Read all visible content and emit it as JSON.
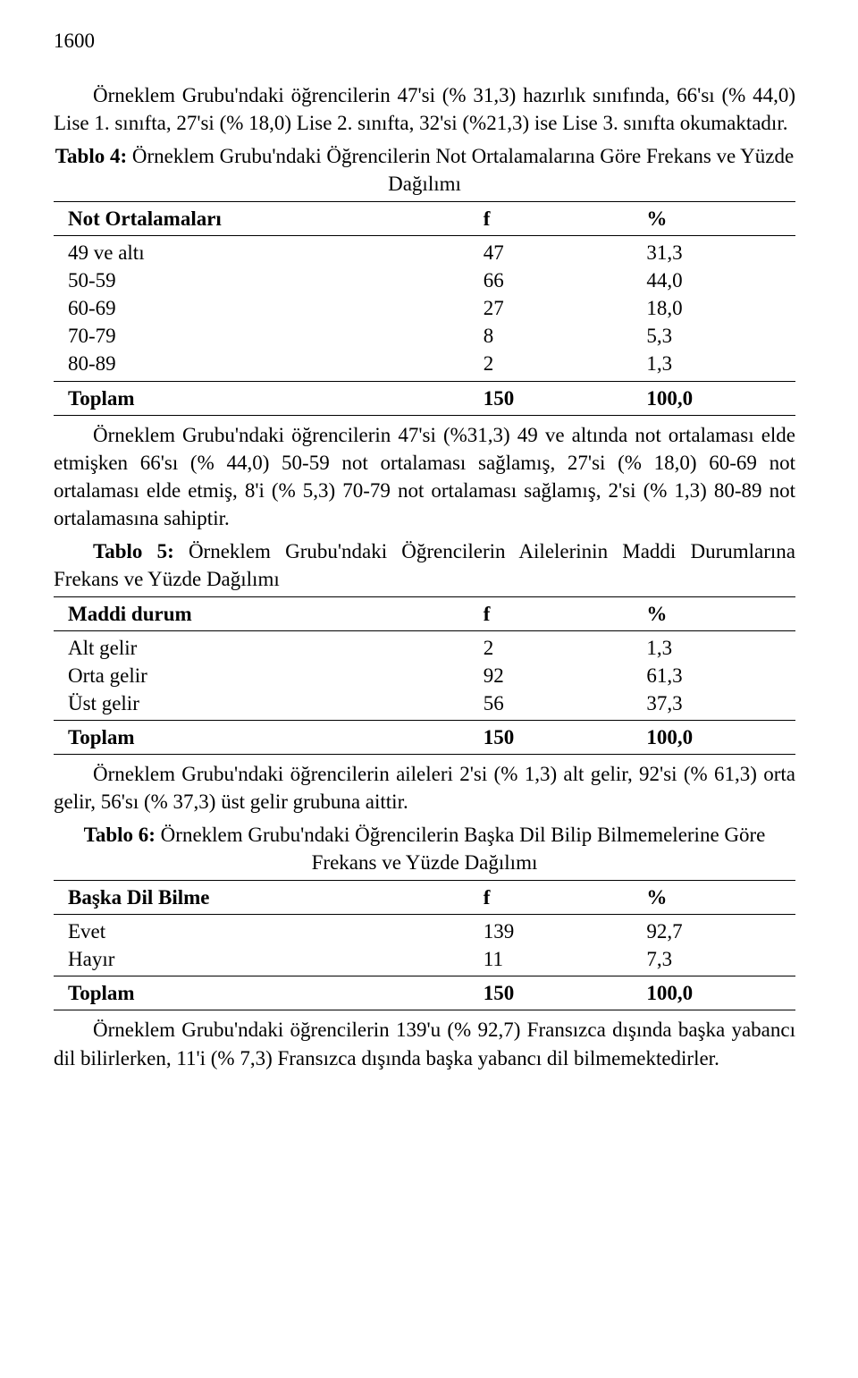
{
  "page_number": "1600",
  "para1": "Örneklem Grubu'ndaki öğrencilerin 47'si (% 31,3) hazırlık sınıfında, 66'sı (% 44,0) Lise 1. sınıfta, 27'si (% 18,0) Lise 2. sınıfta, 32'si (%21,3) ise Lise 3. sınıfta okumaktadır.",
  "table4": {
    "caption_bold": "Tablo 4:",
    "caption_rest": " Örneklem Grubu'ndaki Öğrencilerin Not Ortalamalarına Göre Frekans ve Yüzde Dağılımı",
    "header": {
      "label": "Not Ortalamaları",
      "f": "f",
      "pct": "%"
    },
    "rows": [
      {
        "label": "49 ve altı",
        "f": "47",
        "pct": "31,3"
      },
      {
        "label": "50-59",
        "f": "66",
        "pct": "44,0"
      },
      {
        "label": "60-69",
        "f": "27",
        "pct": "18,0"
      },
      {
        "label": "70-79",
        "f": "8",
        "pct": "5,3"
      },
      {
        "label": "80-89",
        "f": "2",
        "pct": "1,3"
      }
    ],
    "total": {
      "label": "Toplam",
      "f": "150",
      "pct": "100,0"
    }
  },
  "para2": "Örneklem Grubu'ndaki öğrencilerin 47'si (%31,3) 49 ve altında not ortalaması elde etmişken 66'sı (% 44,0) 50-59 not ortalaması sağlamış, 27'si (% 18,0) 60-69 not ortalaması elde etmiş, 8'i (% 5,3) 70-79 not ortalaması sağlamış, 2'si (% 1,3) 80-89 not ortalamasına sahiptir.",
  "table5": {
    "caption_bold": "Tablo 5:",
    "caption_rest": " Örneklem Grubu'ndaki Öğrencilerin Ailelerinin Maddi Durumlarına Frekans ve Yüzde Dağılımı",
    "header": {
      "label": "Maddi durum",
      "f": "f",
      "pct": "%"
    },
    "rows": [
      {
        "label": "Alt gelir",
        "f": "2",
        "pct": "1,3"
      },
      {
        "label": "Orta gelir",
        "f": "92",
        "pct": "61,3"
      },
      {
        "label": "Üst gelir",
        "f": "56",
        "pct": "37,3"
      }
    ],
    "total": {
      "label": "Toplam",
      "f": "150",
      "pct": "100,0"
    }
  },
  "para3": "Örneklem Grubu'ndaki öğrencilerin aileleri 2'si (% 1,3) alt gelir, 92'si (% 61,3) orta gelir, 56'sı (% 37,3) üst gelir grubuna aittir.",
  "table6": {
    "caption_bold": "Tablo 6:",
    "caption_rest": " Örneklem Grubu'ndaki Öğrencilerin Başka Dil Bilip Bilmemelerine Göre Frekans ve Yüzde Dağılımı",
    "header": {
      "label": "Başka Dil Bilme",
      "f": "f",
      "pct": "%"
    },
    "rows": [
      {
        "label": "Evet",
        "f": "139",
        "pct": "92,7"
      },
      {
        "label": "Hayır",
        "f": "11",
        "pct": "7,3"
      }
    ],
    "total": {
      "label": "Toplam",
      "f": "150",
      "pct": "100,0"
    }
  },
  "para4": "Örneklem Grubu'ndaki öğrencilerin 139'u (% 92,7) Fransızca dışında başka yabancı dil bilirlerken, 11'i (% 7,3) Fransızca dışında başka yabancı dil bilmemektedirler."
}
